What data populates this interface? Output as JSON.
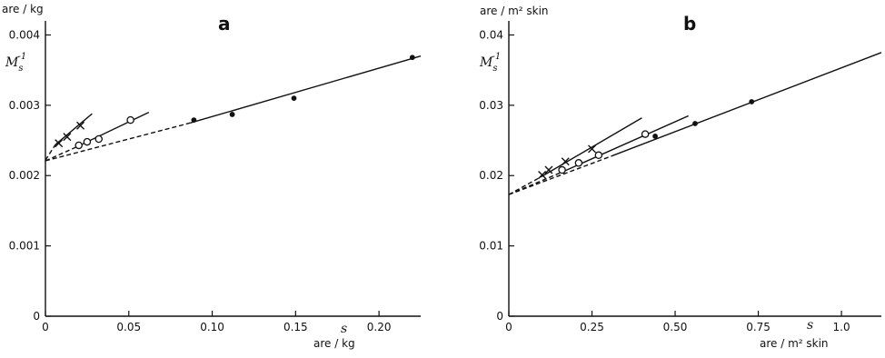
{
  "chart_data": [
    {
      "panel": "a",
      "type": "line",
      "ylabel_unit": "are / kg",
      "ylabel_var": "M",
      "ylabel_var_sub": "s",
      "ylabel_var_sup": "-1",
      "xlabel_var": "s",
      "xlabel_unit": "are / kg",
      "xlim": [
        0,
        0.225
      ],
      "ylim": [
        0,
        0.0042
      ],
      "xticks": [
        0,
        0.05,
        0.1,
        0.15,
        0.2
      ],
      "xtick_labels": [
        "0",
        "0.05",
        "0.10",
        "0.15",
        "0.20"
      ],
      "yticks": [
        0,
        0.001,
        0.002,
        0.003,
        0.004
      ],
      "ytick_labels": [
        "0",
        "0.001",
        "0.002",
        "0.003",
        "0.004"
      ],
      "series": [
        {
          "marker": "cross",
          "points": [
            [
              0.008,
              0.00246
            ],
            [
              0.013,
              0.00255
            ],
            [
              0.021,
              0.00271
            ]
          ],
          "solid_line": [
            [
              0.006,
              0.00244
            ],
            [
              0.028,
              0.00288
            ]
          ],
          "dashed_line": [
            [
              0.0,
              0.00222
            ],
            [
              0.006,
              0.00244
            ]
          ]
        },
        {
          "marker": "open-circle",
          "points": [
            [
              0.02,
              0.00243
            ],
            [
              0.025,
              0.00248
            ],
            [
              0.032,
              0.00252
            ],
            [
              0.051,
              0.00279
            ]
          ],
          "solid_line": [
            [
              0.018,
              0.0024
            ],
            [
              0.062,
              0.0029
            ]
          ],
          "dashed_line": [
            [
              0.0,
              0.00221
            ],
            [
              0.018,
              0.0024
            ]
          ]
        },
        {
          "marker": "filled-dot",
          "points": [
            [
              0.089,
              0.00279
            ],
            [
              0.112,
              0.00287
            ],
            [
              0.149,
              0.0031
            ],
            [
              0.22,
              0.00368
            ]
          ],
          "solid_line": [
            [
              0.087,
              0.00275
            ],
            [
              0.225,
              0.0037
            ]
          ],
          "dashed_line": [
            [
              0.0,
              0.00221
            ],
            [
              0.087,
              0.00275
            ]
          ]
        }
      ]
    },
    {
      "panel": "b",
      "type": "line",
      "ylabel_unit": "are / m² skin",
      "ylabel_var": "M",
      "ylabel_var_sub": "s",
      "ylabel_var_sup": "-1",
      "xlabel_var": "s",
      "xlabel_unit": "are / m² skin",
      "xlim": [
        0,
        1.12
      ],
      "ylim": [
        0,
        0.042
      ],
      "xticks": [
        0,
        0.25,
        0.5,
        0.75,
        1.0
      ],
      "xtick_labels": [
        "0",
        "0.25",
        "0.50",
        "0.75",
        "1.0"
      ],
      "yticks": [
        0,
        0.01,
        0.02,
        0.03,
        0.04
      ],
      "ytick_labels": [
        "0",
        "0.01",
        "0.02",
        "0.03",
        "0.04"
      ],
      "series": [
        {
          "marker": "cross",
          "points": [
            [
              0.1,
              0.0201
            ],
            [
              0.12,
              0.0208
            ],
            [
              0.17,
              0.022
            ],
            [
              0.25,
              0.0238
            ]
          ],
          "solid_line": [
            [
              0.1,
              0.0199
            ],
            [
              0.4,
              0.0282
            ]
          ],
          "dashed_line": [
            [
              0.0,
              0.0173
            ],
            [
              0.1,
              0.0199
            ]
          ]
        },
        {
          "marker": "open-circle",
          "points": [
            [
              0.16,
              0.0208
            ],
            [
              0.21,
              0.0218
            ],
            [
              0.27,
              0.0229
            ],
            [
              0.41,
              0.0259
            ]
          ],
          "solid_line": [
            [
              0.16,
              0.0205
            ],
            [
              0.54,
              0.0285
            ]
          ],
          "dashed_line": [
            [
              0.0,
              0.0173
            ],
            [
              0.16,
              0.0205
            ]
          ]
        },
        {
          "marker": "filled-dot",
          "points": [
            [
              0.44,
              0.0256
            ],
            [
              0.56,
              0.0274
            ],
            [
              0.73,
              0.0305
            ]
          ],
          "solid_line": [
            [
              0.31,
              0.0228
            ],
            [
              1.12,
              0.0375
            ]
          ],
          "dashed_line": [
            [
              0.0,
              0.0173
            ],
            [
              0.31,
              0.0228
            ]
          ]
        }
      ]
    }
  ]
}
